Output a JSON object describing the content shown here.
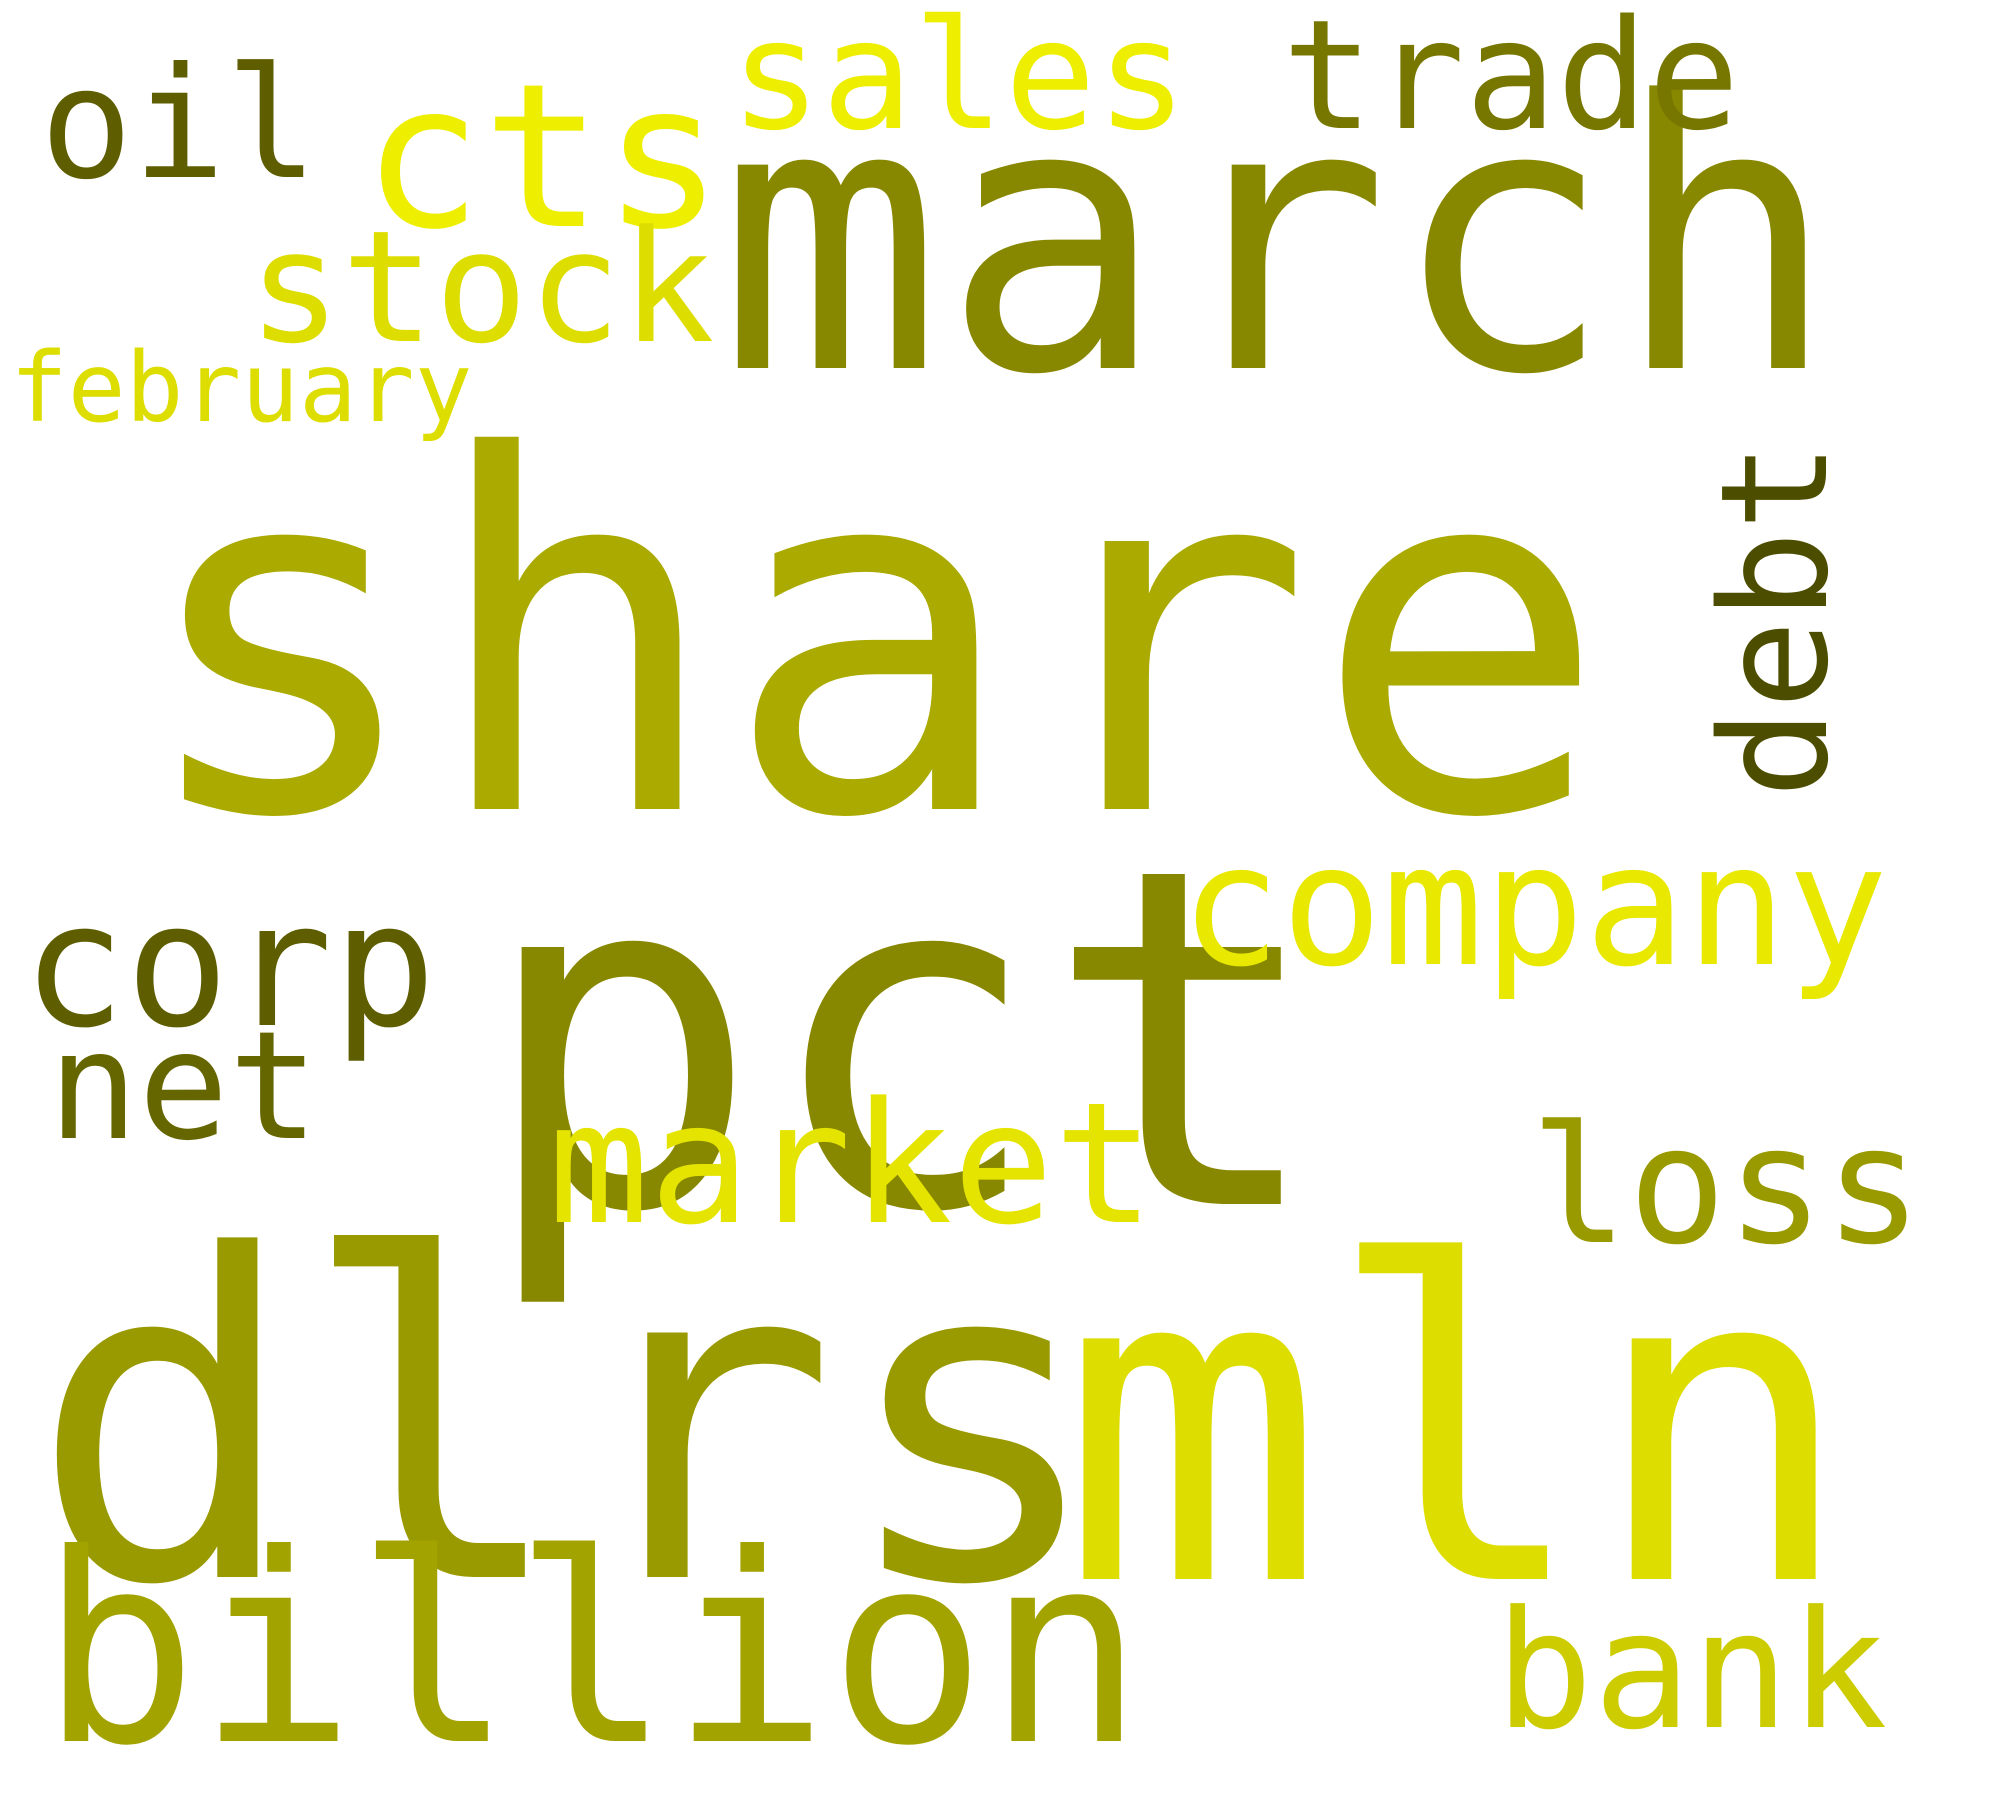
{
  "words": [
    {
      "text": "share",
      "color": "#aaaa00"
    },
    {
      "text": "march",
      "color": "#888800"
    },
    {
      "text": "pct",
      "color": "#888800"
    },
    {
      "text": "dlrs",
      "color": "#999900"
    },
    {
      "text": "mln",
      "color": "#dddd00"
    },
    {
      "text": "billion",
      "color": "#a3a300"
    },
    {
      "text": "cts",
      "color": "#eeee00"
    },
    {
      "text": "company",
      "color": "#e8e800"
    },
    {
      "text": "sales",
      "color": "#eeee00"
    },
    {
      "text": "trade",
      "color": "#777700"
    },
    {
      "text": "stock",
      "color": "#dddd00"
    },
    {
      "text": "market",
      "color": "#e4e400"
    },
    {
      "text": "loss",
      "color": "#999900"
    },
    {
      "text": "bank",
      "color": "#cccc00"
    },
    {
      "text": "corp",
      "color": "#5e5e00"
    },
    {
      "text": "oil",
      "color": "#5e5e00"
    },
    {
      "text": "net",
      "color": "#666600"
    },
    {
      "text": "debt",
      "color": "#4d4d00"
    },
    {
      "text": "february",
      "color": "#dddd00"
    }
  ]
}
